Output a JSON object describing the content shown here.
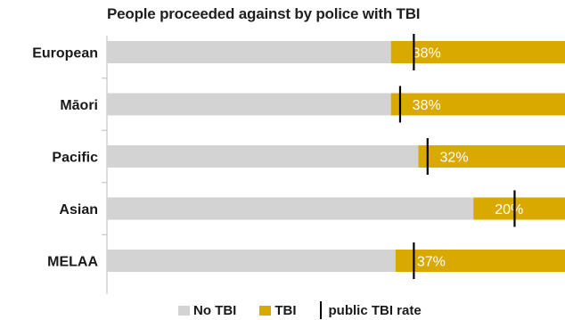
{
  "chart_data": {
    "type": "bar",
    "orientation": "horizontal",
    "stacked": true,
    "title": "People proceeded against by police with TBI",
    "categories": [
      "European",
      "Māori",
      "Pacific",
      "Asian",
      "MELAA"
    ],
    "series": [
      {
        "name": "No TBI",
        "values": [
          62,
          62,
          68,
          80,
          63
        ],
        "color": "#d3d3d3"
      },
      {
        "name": "TBI",
        "values": [
          38,
          38,
          32,
          20,
          37
        ],
        "color": "#d9a900"
      }
    ],
    "data_labels": [
      "38%",
      "38%",
      "32%",
      "20%",
      "37%"
    ],
    "public_tbi_rate": {
      "name": "public TBI rate",
      "values": [
        33,
        36,
        30,
        11,
        33
      ]
    },
    "xlim": [
      0,
      100
    ],
    "legend": "bottom"
  }
}
